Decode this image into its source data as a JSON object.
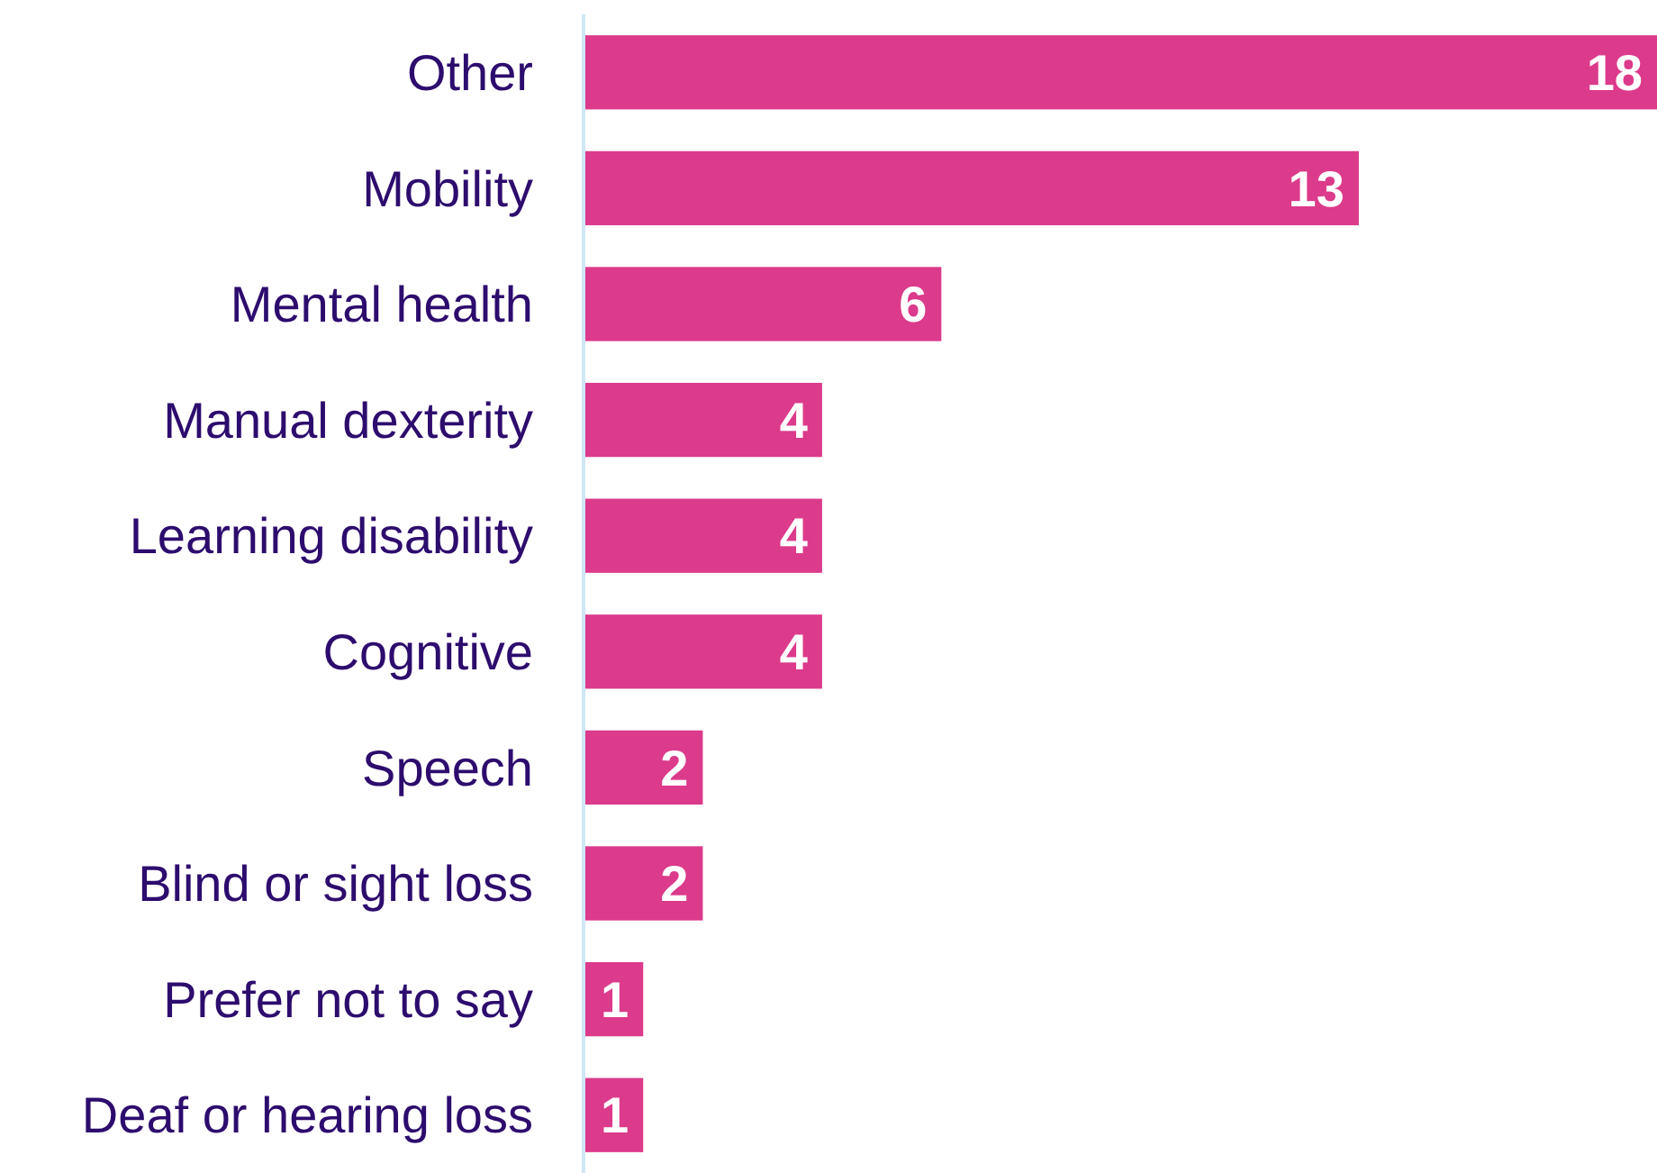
{
  "chart_data": {
    "type": "bar",
    "orientation": "horizontal",
    "data_labels": true,
    "categories": [
      "Other",
      "Mobility",
      "Mental health",
      "Manual dexterity",
      "Learning disability",
      "Cognitive",
      "Speech",
      "Blind or sight loss",
      "Prefer not to say",
      "Deaf or hearing loss"
    ],
    "values": [
      18,
      13,
      6,
      4,
      4,
      4,
      2,
      2,
      1,
      1
    ],
    "color": "#dc3a8b"
  }
}
